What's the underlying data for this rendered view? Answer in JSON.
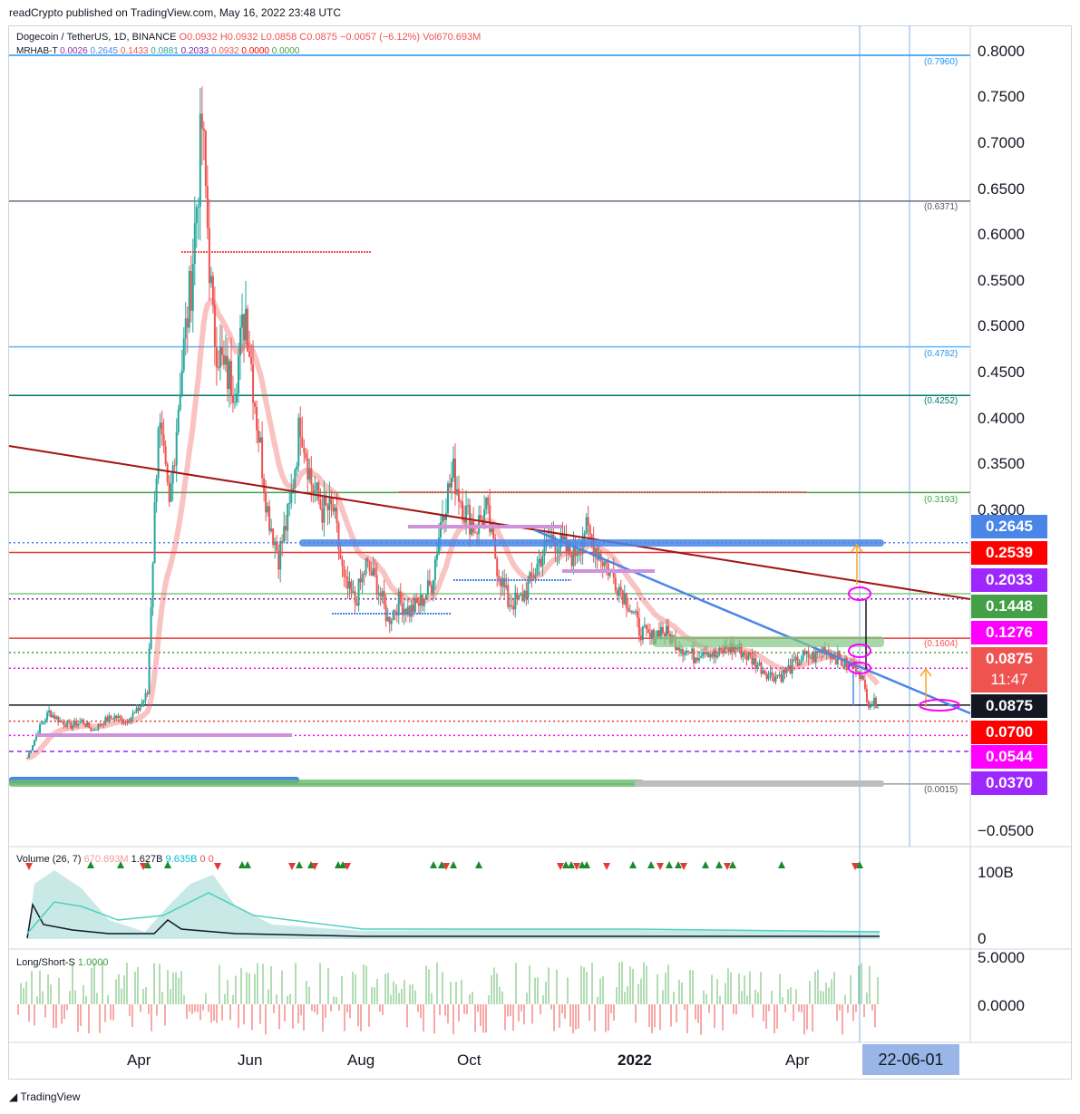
{
  "header": {
    "published": "readCrypto published on TradingView.com, May 16, 2022 23:48 UTC"
  },
  "legend": {
    "symbol": "Dogecoin / TetherUS, 1D, BINANCE",
    "open": "O0.0932",
    "high": "H0.0932",
    "low": "L0.0858",
    "close": "C0.0875",
    "change": "−0.0057 (−6.12%)",
    "volume": "Vol670.693M",
    "indicator": "MRHAB-T",
    "indicator_values": [
      "0.0026",
      "0.2645",
      "0.1433",
      "0.0881",
      "0.2033",
      "0.0932",
      "0.0000",
      "0.0000"
    ],
    "volume_label": "Volume (26, 7)",
    "volume_values": [
      "670.693M",
      "1.627B",
      "9.635B",
      "0",
      "0"
    ],
    "ls_label": "Long/Short-S",
    "ls_value": "1.0000"
  },
  "footer": {
    "brand": "TradingView"
  },
  "colors": {
    "up": "#26a69a",
    "down": "#ef5350",
    "blue_line": "#4a86e8",
    "trend_red": "#a31515"
  },
  "chart_data": {
    "type": "candlestick",
    "title": "Dogecoin / TetherUS, 1D, BINANCE",
    "x_tick_labels": [
      "Apr",
      "Jun",
      "Aug",
      "Oct",
      "2022",
      "Apr"
    ],
    "y_tick_labels": [
      "0.8000",
      "0.7500",
      "0.7000",
      "0.6500",
      "0.6000",
      "0.5500",
      "0.5000",
      "0.4500",
      "0.4000",
      "0.3500",
      "0.3000",
      "−0.0500"
    ],
    "ylim": [
      -0.05,
      0.8
    ],
    "crosshair_date": "22-06-01",
    "countdown": "11:47",
    "price_badges": [
      {
        "value": "0.2645",
        "price": 0.2645,
        "color": "#4a86e8"
      },
      {
        "value": "0.2539",
        "price": 0.2539,
        "color": "#ff0000"
      },
      {
        "value": "0.2033",
        "price": 0.2033,
        "color": "#9c27ff"
      },
      {
        "value": "0.1448",
        "price": 0.1448,
        "color": "#43a047"
      },
      {
        "value": "0.1276",
        "price": 0.1276,
        "color": "#ff00ff"
      },
      {
        "value": "0.0875",
        "price": 0.0875,
        "color": "#ef5350"
      },
      {
        "value": "0.0875",
        "price": 0.0875,
        "color": "#131722"
      },
      {
        "value": "0.0700",
        "price": 0.07,
        "color": "#ff0000"
      },
      {
        "value": "0.0544",
        "price": 0.0544,
        "color": "#ff00ff"
      },
      {
        "value": "0.0370",
        "price": 0.037,
        "color": "#9c27ff"
      }
    ],
    "level_labels": [
      {
        "text": "(0.7960)",
        "price": 0.796,
        "color": "#2196f3"
      },
      {
        "text": "(0.6371)",
        "price": 0.6371,
        "color": "#555555"
      },
      {
        "text": "(0.4782)",
        "price": 0.4782,
        "color": "#2196f3"
      },
      {
        "text": "(0.4252)",
        "price": 0.4252,
        "color": "#00796b"
      },
      {
        "text": "(0.3193)",
        "price": 0.3193,
        "color": "#43a047"
      },
      {
        "text": "(0.1604)",
        "price": 0.1604,
        "color": "#ef5350"
      },
      {
        "text": "(0.0015)",
        "price": 0.0015,
        "color": "#555555"
      }
    ],
    "horizontal_levels": [
      {
        "price": 0.796,
        "color": "#2196f3",
        "style": "solid"
      },
      {
        "price": 0.6371,
        "color": "#6b6b80",
        "style": "solid"
      },
      {
        "price": 0.4782,
        "color": "#64b5f6",
        "style": "solid"
      },
      {
        "price": 0.4252,
        "color": "#00796b",
        "style": "solid"
      },
      {
        "price": 0.3193,
        "color": "#43a047",
        "style": "solid"
      },
      {
        "price": 0.2645,
        "color": "#4a86e8",
        "style": "dotted"
      },
      {
        "price": 0.2539,
        "color": "#e53935",
        "style": "solid"
      },
      {
        "price": 0.2033,
        "color": "#7b1fa2",
        "style": "dotted"
      },
      {
        "price": 0.2089,
        "color": "#81c784",
        "style": "solid"
      },
      {
        "price": 0.1604,
        "color": "#e53935",
        "style": "solid"
      },
      {
        "price": 0.1448,
        "color": "#43a047",
        "style": "dotted"
      },
      {
        "price": 0.1276,
        "color": "#ff00ff",
        "style": "dotted"
      },
      {
        "price": 0.0875,
        "color": "#131722",
        "style": "solid"
      },
      {
        "price": 0.07,
        "color": "#e53935",
        "style": "dotted"
      },
      {
        "price": 0.0544,
        "color": "#ff00ff",
        "style": "dotted"
      },
      {
        "price": 0.037,
        "color": "#9c27ff",
        "style": "dashed"
      },
      {
        "price": 0.0015,
        "color": "#9e9e9e",
        "style": "solid"
      }
    ],
    "price_path": [
      0.03,
      0.06,
      0.08,
      0.07,
      0.065,
      0.07,
      0.06,
      0.07,
      0.075,
      0.07,
      0.08,
      0.1,
      0.4,
      0.3,
      0.44,
      0.55,
      0.72,
      0.5,
      0.45,
      0.44,
      0.52,
      0.4,
      0.3,
      0.25,
      0.3,
      0.4,
      0.33,
      0.3,
      0.3,
      0.22,
      0.2,
      0.24,
      0.22,
      0.18,
      0.2,
      0.19,
      0.2,
      0.22,
      0.3,
      0.34,
      0.3,
      0.28,
      0.3,
      0.24,
      0.2,
      0.2,
      0.22,
      0.25,
      0.27,
      0.26,
      0.25,
      0.28,
      0.26,
      0.24,
      0.22,
      0.2,
      0.17,
      0.16,
      0.17,
      0.16,
      0.15,
      0.14,
      0.15,
      0.14,
      0.15,
      0.15,
      0.14,
      0.13,
      0.12,
      0.12,
      0.13,
      0.14,
      0.14,
      0.15,
      0.14,
      0.13,
      0.13,
      0.09,
      0.09
    ]
  }
}
